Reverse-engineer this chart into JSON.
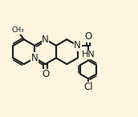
{
  "bg": "#fdf5e0",
  "bc": "#1c1c1c",
  "bw": 1.5,
  "do": 0.013,
  "fs": 8.5,
  "ring_r": 0.092,
  "ph_r": 0.068,
  "xlim": [
    0.03,
    1.05
  ],
  "ylim": [
    0.15,
    1.02
  ],
  "c1": [
    0.205,
    0.635
  ],
  "methyl_label": "CH₃",
  "label_N1": "N",
  "label_N2": "N",
  "label_N3": "N",
  "label_O1": "O",
  "label_O2": "O",
  "label_NH": "HN",
  "label_Cl": "Cl"
}
